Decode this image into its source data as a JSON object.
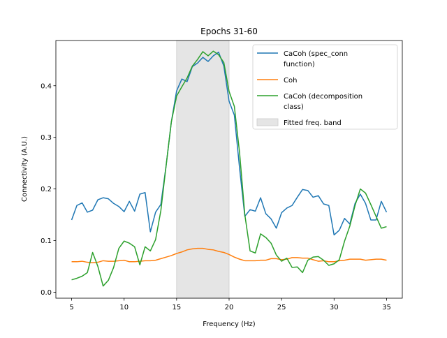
{
  "chart_data": {
    "type": "line",
    "title": "Epochs 31-60",
    "xlabel": "Frequency (Hz)",
    "ylabel": "Connectivity (A.U.)",
    "xlim": [
      3.5,
      36.5
    ],
    "ylim": [
      -0.0116,
      0.4876
    ],
    "xticks": [
      5,
      10,
      15,
      20,
      25,
      30,
      35
    ],
    "yticks": [
      0.0,
      0.1,
      0.2,
      0.3,
      0.4
    ],
    "ytick_labels": [
      "0.0",
      "0.1",
      "0.2",
      "0.3",
      "0.4"
    ],
    "grid": false,
    "legend_position": "top-right",
    "shaded_band": {
      "x0": 15,
      "x1": 20,
      "label": "Fitted freq. band",
      "color": "#e5e5e5"
    },
    "x": [
      5.0,
      5.5,
      6.0,
      6.5,
      7.0,
      7.5,
      8.0,
      8.5,
      9.0,
      9.5,
      10.0,
      10.5,
      11.0,
      11.5,
      12.0,
      12.5,
      13.0,
      13.5,
      14.0,
      14.5,
      15.0,
      15.5,
      16.0,
      16.5,
      17.0,
      17.5,
      18.0,
      18.5,
      19.0,
      19.5,
      20.0,
      20.5,
      21.0,
      21.5,
      22.0,
      22.5,
      23.0,
      23.5,
      24.0,
      24.5,
      25.0,
      25.5,
      26.0,
      26.5,
      27.0,
      27.5,
      28.0,
      28.5,
      29.0,
      29.5,
      30.0,
      30.5,
      31.0,
      31.5,
      32.0,
      32.5,
      33.0,
      33.5,
      34.0,
      34.5,
      35.0
    ],
    "series": [
      {
        "name": "CaCoh (spec_conn\nfunction)",
        "color": "#1f77b4",
        "values": [
          0.14,
          0.168,
          0.173,
          0.155,
          0.159,
          0.179,
          0.183,
          0.181,
          0.172,
          0.166,
          0.156,
          0.176,
          0.157,
          0.19,
          0.193,
          0.117,
          0.155,
          0.17,
          0.245,
          0.33,
          0.39,
          0.413,
          0.408,
          0.437,
          0.444,
          0.455,
          0.447,
          0.458,
          0.465,
          0.438,
          0.37,
          0.343,
          0.24,
          0.147,
          0.16,
          0.157,
          0.183,
          0.152,
          0.142,
          0.124,
          0.154,
          0.163,
          0.168,
          0.184,
          0.199,
          0.197,
          0.184,
          0.187,
          0.171,
          0.168,
          0.111,
          0.12,
          0.143,
          0.132,
          0.172,
          0.19,
          0.172,
          0.14,
          0.14,
          0.176,
          0.155
        ]
      },
      {
        "name": "Coh",
        "color": "#ff7f0e",
        "values": [
          0.059,
          0.059,
          0.06,
          0.058,
          0.057,
          0.058,
          0.061,
          0.06,
          0.06,
          0.061,
          0.062,
          0.059,
          0.059,
          0.06,
          0.061,
          0.061,
          0.062,
          0.065,
          0.068,
          0.071,
          0.075,
          0.078,
          0.082,
          0.084,
          0.085,
          0.085,
          0.083,
          0.082,
          0.079,
          0.077,
          0.073,
          0.068,
          0.064,
          0.061,
          0.061,
          0.061,
          0.062,
          0.062,
          0.065,
          0.065,
          0.063,
          0.064,
          0.067,
          0.067,
          0.066,
          0.066,
          0.063,
          0.06,
          0.061,
          0.059,
          0.059,
          0.061,
          0.062,
          0.064,
          0.064,
          0.064,
          0.062,
          0.063,
          0.064,
          0.064,
          0.062
        ]
      },
      {
        "name": "CaCoh (decomposition\nclass)",
        "color": "#2ca02c",
        "values": [
          0.024,
          0.027,
          0.031,
          0.038,
          0.077,
          0.05,
          0.012,
          0.023,
          0.048,
          0.085,
          0.099,
          0.095,
          0.088,
          0.053,
          0.088,
          0.08,
          0.102,
          0.158,
          0.245,
          0.33,
          0.38,
          0.398,
          0.415,
          0.438,
          0.451,
          0.466,
          0.458,
          0.467,
          0.46,
          0.445,
          0.389,
          0.36,
          0.27,
          0.15,
          0.08,
          0.076,
          0.113,
          0.106,
          0.095,
          0.072,
          0.06,
          0.066,
          0.048,
          0.049,
          0.038,
          0.062,
          0.068,
          0.069,
          0.062,
          0.052,
          0.055,
          0.063,
          0.099,
          0.128,
          0.168,
          0.2,
          0.192,
          0.17,
          0.147,
          0.124,
          0.127
        ]
      }
    ]
  }
}
